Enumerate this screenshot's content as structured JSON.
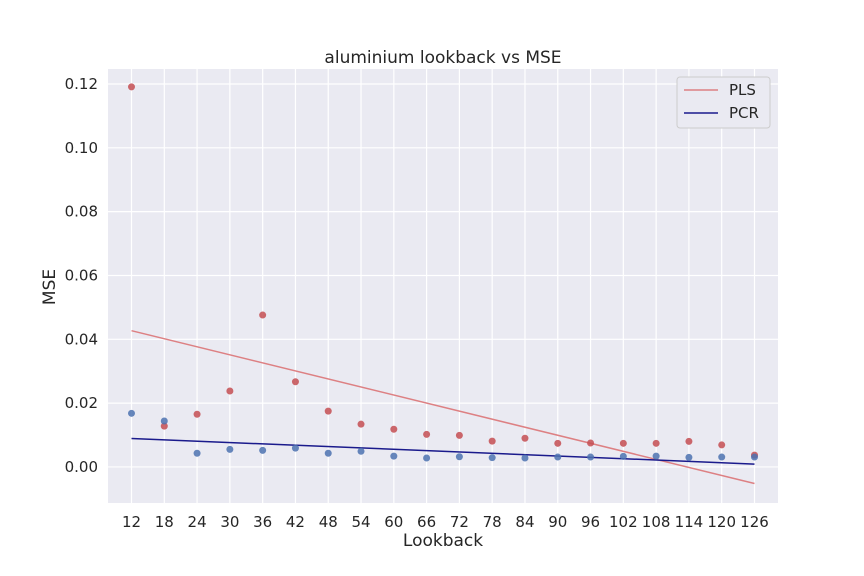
{
  "chart_data": {
    "type": "scatter",
    "title": "aluminium lookback vs MSE",
    "xlabel": "Lookback",
    "ylabel": "MSE",
    "x_ticks": [
      12,
      18,
      24,
      30,
      36,
      42,
      48,
      54,
      60,
      66,
      72,
      78,
      84,
      90,
      96,
      102,
      108,
      114,
      120,
      126
    ],
    "y_ticks": [
      "0.00",
      "0.02",
      "0.04",
      "0.06",
      "0.08",
      "0.10",
      "0.12"
    ],
    "xlim": [
      7.7,
      130.3
    ],
    "ylim": [
      -0.0113,
      0.1247
    ],
    "grid": true,
    "legend_position": "top-right",
    "series": [
      {
        "name": "PLS",
        "marker_color": "#c44e52",
        "line_color": "#dd8083",
        "x": [
          12,
          18,
          24,
          30,
          36,
          42,
          48,
          54,
          60,
          66,
          72,
          78,
          84,
          90,
          96,
          102,
          108,
          114,
          120,
          126
        ],
        "values": [
          0.1191,
          0.0128,
          0.0165,
          0.0238,
          0.0476,
          0.0267,
          0.0175,
          0.0134,
          0.0118,
          0.0102,
          0.0099,
          0.0081,
          0.009,
          0.0074,
          0.0075,
          0.0074,
          0.0074,
          0.008,
          0.0069,
          0.0037
        ],
        "fit": {
          "x": [
            12,
            126
          ],
          "y": [
            0.0427,
            -0.0052
          ]
        }
      },
      {
        "name": "PCR",
        "marker_color": "#4c72b0",
        "line_color": "#1a1a8c",
        "x": [
          12,
          18,
          24,
          30,
          36,
          42,
          48,
          54,
          60,
          66,
          72,
          78,
          84,
          90,
          96,
          102,
          108,
          114,
          120,
          126
        ],
        "values": [
          0.0168,
          0.0144,
          0.0043,
          0.0055,
          0.0052,
          0.0059,
          0.0043,
          0.0049,
          0.0034,
          0.0028,
          0.0032,
          0.0029,
          0.0028,
          0.0031,
          0.0031,
          0.0033,
          0.0034,
          0.003,
          0.0031,
          0.0031
        ],
        "fit": {
          "x": [
            12,
            126
          ],
          "y": [
            0.0089,
            0.0009
          ]
        }
      }
    ]
  }
}
